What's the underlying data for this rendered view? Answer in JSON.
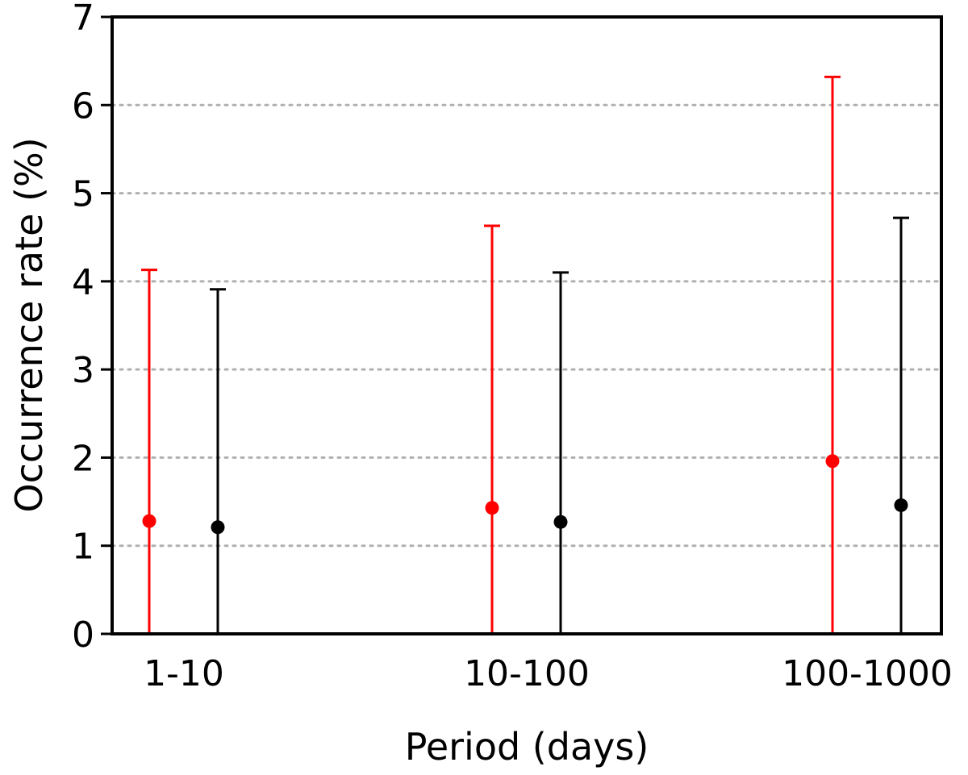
{
  "chart_data": {
    "type": "scatter",
    "xlabel": "Period (days)",
    "ylabel": "Occurrence rate (%)",
    "ylim": [
      0,
      7
    ],
    "yticks": [
      0,
      1,
      2,
      3,
      4,
      5,
      6,
      7
    ],
    "categories": [
      "1-10",
      "10-100",
      "100-1000"
    ],
    "grid": "horizontal dotted",
    "series": [
      {
        "color": "#ff0000",
        "values": [
          1.28,
          1.43,
          1.96
        ],
        "err_low": [
          0,
          0,
          0
        ],
        "err_high": [
          4.13,
          4.63,
          6.32
        ]
      },
      {
        "color": "#000000",
        "values": [
          1.21,
          1.27,
          1.46
        ],
        "err_low": [
          0,
          0,
          0
        ],
        "err_high": [
          3.91,
          4.1,
          4.72
        ]
      }
    ]
  }
}
